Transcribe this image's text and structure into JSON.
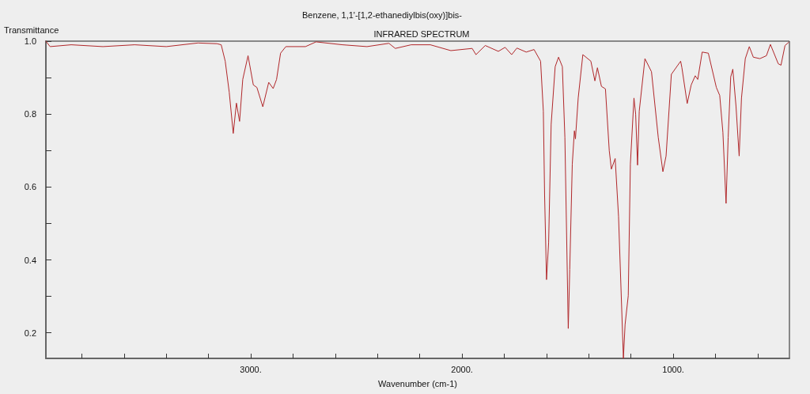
{
  "chart_data": {
    "type": "line",
    "title": "Benzene, 1,1'-[1,2-ethanediylbis(oxy)]bis-",
    "subtitle": "INFRARED SPECTRUM",
    "xlabel": "Wavenumber (cm-1)",
    "ylabel": "Transmittance",
    "x": [
      3970,
      3950,
      3850,
      3700,
      3550,
      3400,
      3250,
      3160,
      3140,
      3121,
      3102,
      3083,
      3068,
      3053,
      3038,
      3013,
      2988,
      2971,
      2943,
      2915,
      2894,
      2878,
      2859,
      2834,
      2741,
      2691,
      2566,
      2450,
      2346,
      2316,
      2241,
      2150,
      2053,
      1952,
      1934,
      1890,
      1828,
      1796,
      1765,
      1740,
      1696,
      1659,
      1628,
      1615,
      1609,
      1600,
      1590,
      1578,
      1559,
      1543,
      1525,
      1513,
      1497,
      1490,
      1478,
      1468,
      1463,
      1450,
      1428,
      1390,
      1371,
      1359,
      1340,
      1321,
      1303,
      1293,
      1275,
      1259,
      1236,
      1228,
      1213,
      1203,
      1186,
      1178,
      1169,
      1161,
      1134,
      1103,
      1071,
      1049,
      1034,
      1009,
      965,
      959,
      934,
      915,
      896,
      884,
      863,
      834,
      796,
      780,
      765,
      750,
      740,
      728,
      718,
      703,
      688,
      677,
      659,
      640,
      621,
      590,
      559,
      540,
      503,
      490,
      471,
      453
    ],
    "values": [
      1.0,
      0.985,
      0.99,
      0.985,
      0.99,
      0.985,
      0.995,
      0.993,
      0.99,
      0.945,
      0.86,
      0.747,
      0.83,
      0.78,
      0.895,
      0.96,
      0.88,
      0.873,
      0.82,
      0.887,
      0.87,
      0.895,
      0.967,
      0.985,
      0.985,
      0.998,
      0.99,
      0.985,
      0.994,
      0.98,
      0.99,
      0.99,
      0.974,
      0.98,
      0.963,
      0.988,
      0.972,
      0.983,
      0.963,
      0.981,
      0.97,
      0.977,
      0.945,
      0.808,
      0.577,
      0.346,
      0.447,
      0.772,
      0.93,
      0.956,
      0.93,
      0.736,
      0.212,
      0.374,
      0.663,
      0.754,
      0.732,
      0.844,
      0.963,
      0.945,
      0.891,
      0.927,
      0.876,
      0.869,
      0.7,
      0.649,
      0.678,
      0.519,
      0.13,
      0.223,
      0.302,
      0.663,
      0.844,
      0.8,
      0.66,
      0.808,
      0.952,
      0.916,
      0.736,
      0.642,
      0.685,
      0.909,
      0.945,
      0.927,
      0.829,
      0.88,
      0.905,
      0.895,
      0.97,
      0.967,
      0.873,
      0.851,
      0.75,
      0.555,
      0.736,
      0.902,
      0.923,
      0.822,
      0.685,
      0.844,
      0.952,
      0.985,
      0.956,
      0.952,
      0.96,
      0.991,
      0.938,
      0.934,
      0.988,
      0.997
    ],
    "color": "#b0272a",
    "marker": "none",
    "line_style": "solid",
    "grid": false,
    "xlim": [
      3970,
      450
    ],
    "xticks": [
      {
        "value": 3800,
        "label": null
      },
      {
        "value": 3600,
        "label": null
      },
      {
        "value": 3400,
        "label": null
      },
      {
        "value": 3200,
        "label": null
      },
      {
        "value": 3000,
        "label": "3000."
      },
      {
        "value": 2800,
        "label": null
      },
      {
        "value": 2600,
        "label": null
      },
      {
        "value": 2400,
        "label": null
      },
      {
        "value": 2200,
        "label": null
      },
      {
        "value": 2000,
        "label": "2000."
      },
      {
        "value": 1800,
        "label": null
      },
      {
        "value": 1600,
        "label": null
      },
      {
        "value": 1400,
        "label": null
      },
      {
        "value": 1200,
        "label": null
      },
      {
        "value": 1000,
        "label": "1000."
      },
      {
        "value": 800,
        "label": null
      },
      {
        "value": 600,
        "label": null
      }
    ],
    "ylim": [
      0.13,
      1.0
    ],
    "yticks": [
      0.2,
      {
        "value": 0.3,
        "label": null
      },
      0.4,
      {
        "value": 0.5,
        "label": null
      },
      0.6,
      {
        "value": 0.7,
        "label": null
      },
      0.8,
      {
        "value": 0.9,
        "label": null
      },
      {
        "value": 1,
        "label": "1.0"
      }
    ]
  }
}
